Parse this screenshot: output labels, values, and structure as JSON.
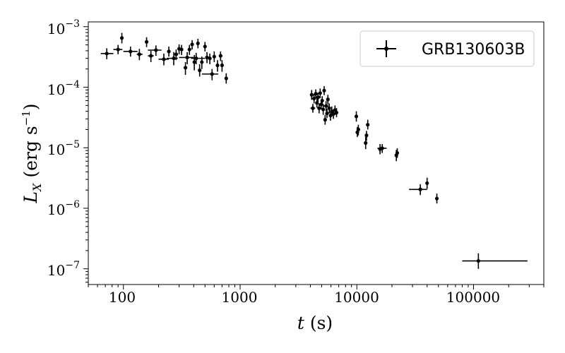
{
  "chart_data": {
    "type": "scatter",
    "title": "",
    "xlabel": "t (s)",
    "ylabel": "L_X (erg s^-1)",
    "x_scale": "log",
    "y_scale": "log",
    "xlim": [
      50,
      400000
    ],
    "ylim": [
      5.5e-08,
      0.0012
    ],
    "grid": false,
    "legend_position": "top-right",
    "x_tick_labels": [
      "100",
      "1000",
      "10000",
      "100000"
    ],
    "y_tick_labels": [
      "10-3",
      "10-4",
      "10-5",
      "10-6",
      "10-7"
    ],
    "series": [
      {
        "name": "GRB130603B",
        "color": "#000000",
        "marker": "point-with-xy-errorbars",
        "points": [
          {
            "x": 72,
            "y": 0.00036,
            "x_lo": 64,
            "x_hi": 82,
            "y_lo": 0.00029,
            "y_hi": 0.00044
          },
          {
            "x": 90,
            "y": 0.00042,
            "x_lo": 82,
            "x_hi": 98,
            "y_lo": 0.00035,
            "y_hi": 0.0005
          },
          {
            "x": 97,
            "y": 0.00065,
            "y_lo": 0.00053,
            "y_hi": 0.00079
          },
          {
            "x": 115,
            "y": 0.00039,
            "x_lo": 100,
            "x_hi": 132,
            "y_lo": 0.00032,
            "y_hi": 0.00047
          },
          {
            "x": 137,
            "y": 0.00035,
            "x_lo": 130,
            "x_hi": 146,
            "y_lo": 0.00028,
            "y_hi": 0.00043
          },
          {
            "x": 158,
            "y": 0.00056,
            "y_lo": 0.00046,
            "y_hi": 0.00067
          },
          {
            "x": 172,
            "y": 0.00033,
            "x_lo": 162,
            "x_hi": 182,
            "y_lo": 0.00026,
            "y_hi": 0.0004
          },
          {
            "x": 190,
            "y": 0.00041,
            "x_lo": 162,
            "x_hi": 212,
            "y_lo": 0.00033,
            "y_hi": 0.00049
          },
          {
            "x": 222,
            "y": 0.00029,
            "x_lo": 200,
            "x_hi": 245,
            "y_lo": 0.00023,
            "y_hi": 0.00036
          },
          {
            "x": 245,
            "y": 0.00039,
            "y_lo": 0.00032,
            "y_hi": 0.00047
          },
          {
            "x": 270,
            "y": 0.0003,
            "x_lo": 235,
            "x_hi": 292,
            "y_lo": 0.00023,
            "y_hi": 0.00038
          },
          {
            "x": 283,
            "y": 0.00035,
            "y_lo": 0.00028,
            "y_hi": 0.00042
          },
          {
            "x": 300,
            "y": 0.00043,
            "y_lo": 0.00035,
            "y_hi": 0.00051
          },
          {
            "x": 315,
            "y": 0.00042,
            "y_lo": 0.00034,
            "y_hi": 0.0005
          },
          {
            "x": 340,
            "y": 0.00021,
            "y_lo": 0.00016,
            "y_hi": 0.00026
          },
          {
            "x": 352,
            "y": 0.00031,
            "x_lo": 300,
            "x_hi": 400,
            "y_lo": 0.00024,
            "y_hi": 0.00038
          },
          {
            "x": 368,
            "y": 0.00042,
            "y_lo": 0.00034,
            "y_hi": 0.0005
          },
          {
            "x": 388,
            "y": 0.00051,
            "y_lo": 0.00042,
            "y_hi": 0.0006
          },
          {
            "x": 405,
            "y": 0.00026,
            "y_lo": 0.00019,
            "y_hi": 0.00034
          },
          {
            "x": 420,
            "y": 0.0003,
            "x_lo": 380,
            "x_hi": 500,
            "y_lo": 0.00024,
            "y_hi": 0.00037
          },
          {
            "x": 435,
            "y": 0.00053,
            "y_lo": 0.00044,
            "y_hi": 0.00063
          },
          {
            "x": 450,
            "y": 0.00019,
            "y_lo": 0.00015,
            "y_hi": 0.00024
          },
          {
            "x": 470,
            "y": 0.00026,
            "y_lo": 0.0002,
            "y_hi": 0.00032
          },
          {
            "x": 500,
            "y": 0.00047,
            "y_lo": 0.00039,
            "y_hi": 0.00056
          },
          {
            "x": 520,
            "y": 0.00031,
            "y_lo": 0.00025,
            "y_hi": 0.00038
          },
          {
            "x": 550,
            "y": 0.0003,
            "y_lo": 0.00024,
            "y_hi": 0.00036
          },
          {
            "x": 575,
            "y": 0.000165,
            "x_lo": 470,
            "x_hi": 650,
            "y_lo": 0.00013,
            "y_hi": 0.0002
          },
          {
            "x": 600,
            "y": 0.00032,
            "y_lo": 0.00026,
            "y_hi": 0.00039
          },
          {
            "x": 640,
            "y": 0.00023,
            "y_lo": 0.00018,
            "y_hi": 0.00028
          },
          {
            "x": 680,
            "y": 0.00033,
            "y_lo": 0.00027,
            "y_hi": 0.00039
          },
          {
            "x": 700,
            "y": 0.00023,
            "y_lo": 0.00018,
            "y_hi": 0.00028
          },
          {
            "x": 760,
            "y": 0.00014,
            "y_lo": 0.000115,
            "y_hi": 0.00017
          },
          {
            "x": 4100,
            "y": 7.5e-05,
            "y_lo": 6.2e-05,
            "y_hi": 9e-05
          },
          {
            "x": 4200,
            "y": 4.5e-05,
            "x_lo": 4000,
            "x_hi": 4400,
            "y_lo": 3.8e-05,
            "y_hi": 5.3e-05
          },
          {
            "x": 4300,
            "y": 6.5e-05,
            "y_lo": 5.4e-05,
            "y_hi": 7.8e-05
          },
          {
            "x": 4450,
            "y": 7.8e-05,
            "y_lo": 6.5e-05,
            "y_hi": 9.2e-05
          },
          {
            "x": 4550,
            "y": 5.5e-05,
            "y_lo": 4.6e-05,
            "y_hi": 6.6e-05
          },
          {
            "x": 4650,
            "y": 6.8e-05,
            "y_lo": 5.7e-05,
            "y_hi": 8.1e-05
          },
          {
            "x": 4750,
            "y": 4.5e-05,
            "y_lo": 3.7e-05,
            "y_hi": 5.4e-05
          },
          {
            "x": 4850,
            "y": 8e-05,
            "y_lo": 6.6e-05,
            "y_hi": 9.5e-05
          },
          {
            "x": 4950,
            "y": 5.2e-05,
            "x_lo": 4700,
            "x_hi": 5200,
            "y_lo": 4.3e-05,
            "y_hi": 6.2e-05
          },
          {
            "x": 5050,
            "y": 6e-05,
            "y_lo": 5e-05,
            "y_hi": 7.1e-05
          },
          {
            "x": 5150,
            "y": 4.3e-05,
            "y_lo": 3.5e-05,
            "y_hi": 5.2e-05
          },
          {
            "x": 5250,
            "y": 8.8e-05,
            "y_lo": 7.4e-05,
            "y_hi": 0.000104
          },
          {
            "x": 5350,
            "y": 2.9e-05,
            "y_lo": 2.4e-05,
            "y_hi": 3.5e-05
          },
          {
            "x": 5450,
            "y": 4.9e-05,
            "x_lo": 5200,
            "x_hi": 5700,
            "y_lo": 4e-05,
            "y_hi": 5.9e-05
          },
          {
            "x": 5550,
            "y": 3.7e-05,
            "y_lo": 3.1e-05,
            "y_hi": 4.4e-05
          },
          {
            "x": 5650,
            "y": 6.3e-05,
            "y_lo": 5.2e-05,
            "y_hi": 7.5e-05
          },
          {
            "x": 5800,
            "y": 4.5e-05,
            "y_lo": 3.7e-05,
            "y_hi": 5.4e-05
          },
          {
            "x": 5950,
            "y": 3.4e-05,
            "y_lo": 2.8e-05,
            "y_hi": 4.1e-05
          },
          {
            "x": 6100,
            "y": 4e-05,
            "y_lo": 3.3e-05,
            "y_hi": 4.8e-05
          },
          {
            "x": 6300,
            "y": 3.6e-05,
            "x_lo": 6000,
            "x_hi": 6600,
            "y_lo": 3e-05,
            "y_hi": 4.3e-05
          },
          {
            "x": 6500,
            "y": 4.2e-05,
            "y_lo": 3.5e-05,
            "y_hi": 5e-05
          },
          {
            "x": 6700,
            "y": 3.8e-05,
            "y_lo": 3.2e-05,
            "y_hi": 4.5e-05
          },
          {
            "x": 9900,
            "y": 3.3e-05,
            "y_lo": 2.7e-05,
            "y_hi": 4e-05
          },
          {
            "x": 10100,
            "y": 1.8e-05,
            "y_lo": 1.5e-05,
            "y_hi": 2.2e-05
          },
          {
            "x": 10300,
            "y": 2e-05,
            "y_lo": 1.6e-05,
            "y_hi": 2.4e-05
          },
          {
            "x": 11900,
            "y": 1.2e-05,
            "y_lo": 9.5e-06,
            "y_hi": 1.5e-05
          },
          {
            "x": 12100,
            "y": 1.6e-05,
            "y_lo": 1.3e-05,
            "y_hi": 1.9e-05
          },
          {
            "x": 12400,
            "y": 2.4e-05,
            "y_lo": 2e-05,
            "y_hi": 2.9e-05
          },
          {
            "x": 15800,
            "y": 9.5e-06,
            "y_lo": 7.8e-06,
            "y_hi": 1.15e-05
          },
          {
            "x": 16500,
            "y": 9.8e-06,
            "x_lo": 15000,
            "x_hi": 18000,
            "y_lo": 8.2e-06,
            "y_hi": 1.15e-05
          },
          {
            "x": 21800,
            "y": 7.5e-06,
            "y_lo": 6e-06,
            "y_hi": 9.2e-06
          },
          {
            "x": 22200,
            "y": 8.2e-06,
            "y_lo": 6.8e-06,
            "y_hi": 9.8e-06
          },
          {
            "x": 35000,
            "y": 2.05e-06,
            "x_lo": 28000,
            "x_hi": 40000,
            "y_lo": 1.65e-06,
            "y_hi": 2.5e-06
          },
          {
            "x": 40000,
            "y": 2.6e-06,
            "y_lo": 2.1e-06,
            "y_hi": 3.2e-06
          },
          {
            "x": 48500,
            "y": 1.45e-06,
            "y_lo": 1.2e-06,
            "y_hi": 1.75e-06
          },
          {
            "x": 110000,
            "y": 1.35e-07,
            "x_lo": 80000,
            "x_hi": 290000,
            "y_lo": 1e-07,
            "y_hi": 1.8e-07
          }
        ]
      }
    ]
  }
}
